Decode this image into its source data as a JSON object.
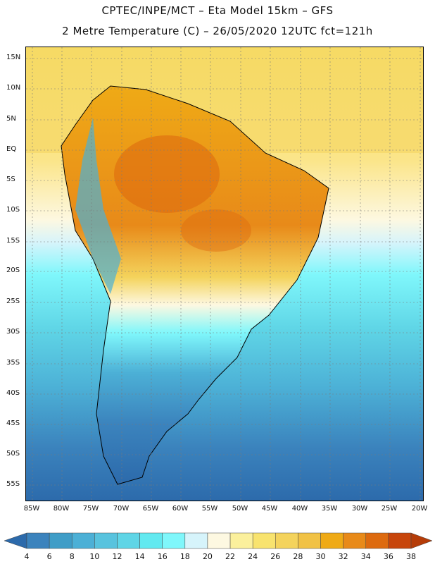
{
  "title_line1": "CPTEC/INPE/MCT –  Eta Model 15km – GFS",
  "title_line2": "2 Metre Temperature (C) – 26/05/2020 12UTC fct=121h",
  "lat_labels": [
    "15N",
    "10N",
    "5N",
    "EQ",
    "5S",
    "10S",
    "15S",
    "20S",
    "25S",
    "30S",
    "35S",
    "40S",
    "45S",
    "50S",
    "55S"
  ],
  "lon_labels": [
    "85W",
    "80W",
    "75W",
    "70W",
    "65W",
    "60W",
    "55W",
    "50W",
    "45W",
    "40W",
    "35W",
    "30W",
    "25W",
    "20W"
  ],
  "legend": {
    "labels": [
      "4",
      "6",
      "8",
      "10",
      "12",
      "14",
      "16",
      "18",
      "20",
      "22",
      "24",
      "26",
      "28",
      "30",
      "32",
      "34",
      "36",
      "38"
    ],
    "colors": [
      "#2c6aab",
      "#3b83bd",
      "#3f9dc7",
      "#4cb0d6",
      "#58c3de",
      "#5fd5e6",
      "#62e9f0",
      "#7ff7fb",
      "#d6f4fb",
      "#fdf8e1",
      "#fbf09c",
      "#f8e36e",
      "#f4d35c",
      "#f1c245",
      "#efaa16",
      "#e88a19",
      "#dd6a0f",
      "#c7450b",
      "#b53c08"
    ]
  },
  "map": {
    "regions": {
      "ocean_north": "Ocean north warm",
      "continent_north": "Continent north",
      "continent_south": "Continent south",
      "ocean_south": "Ocean south cold"
    }
  }
}
